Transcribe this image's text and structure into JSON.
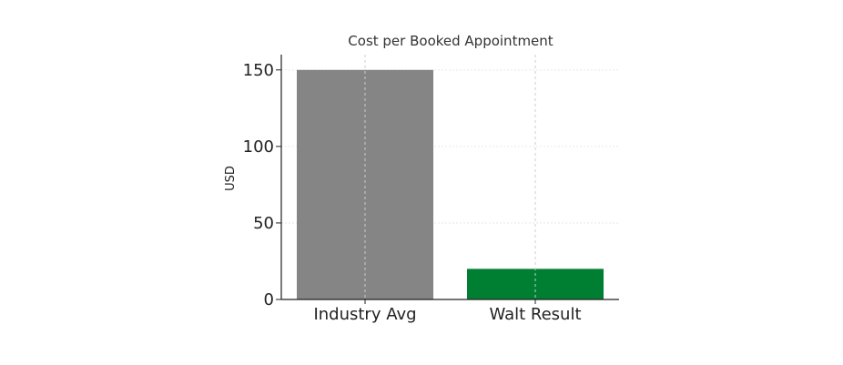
{
  "chart_data": {
    "type": "bar",
    "title": "Cost per Booked Appointment",
    "xlabel": "",
    "ylabel": "USD",
    "categories": [
      "Industry Avg",
      "Walt Result"
    ],
    "values": [
      150,
      20
    ],
    "bar_colors": [
      "#858585",
      "#007f32"
    ],
    "ylim": [
      0,
      160
    ],
    "yticks": [
      0,
      50,
      100,
      150
    ],
    "grid": true,
    "legend": null
  }
}
